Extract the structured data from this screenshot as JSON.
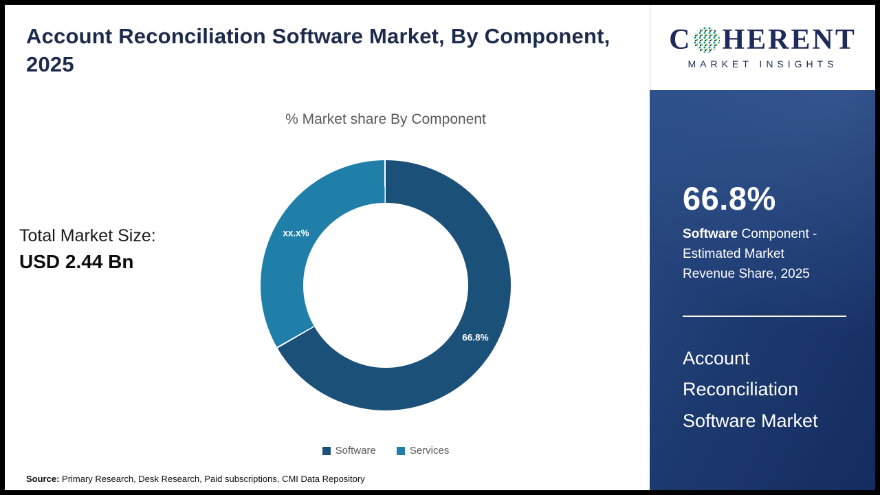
{
  "header": {
    "title": "Account Reconciliation Software Market, By Component, 2025"
  },
  "total_market": {
    "label": "Total Market Size:",
    "value": "USD 2.44 Bn"
  },
  "source": {
    "label": "Source:",
    "text": " Primary Research, Desk Research, Paid subscriptions, CMI Data Repository"
  },
  "sidebar": {
    "brand_name": "C HERENT",
    "brand_word_start": "C",
    "brand_word_end": "HERENT",
    "brand_tagline": "MARKET INSIGHTS",
    "stat_value": "66.8%",
    "stat_desc_bold": "Software",
    "stat_desc_rest": " Component - Estimated Market Revenue Share, 2025",
    "market_title": "Account Reconciliation Software Market"
  },
  "chart_data": {
    "type": "pie",
    "donut": true,
    "title": "% Market share By Component",
    "labels": [
      "Software",
      "Services"
    ],
    "values": [
      66.8,
      33.2
    ],
    "display_labels": [
      "66.8%",
      "xx.x%"
    ],
    "colors": [
      "#1b5079",
      "#1f7fa8"
    ],
    "start_angle_deg": 0,
    "direction": "clockwise",
    "legend_position": "bottom",
    "inner_radius_ratio": 0.66
  }
}
